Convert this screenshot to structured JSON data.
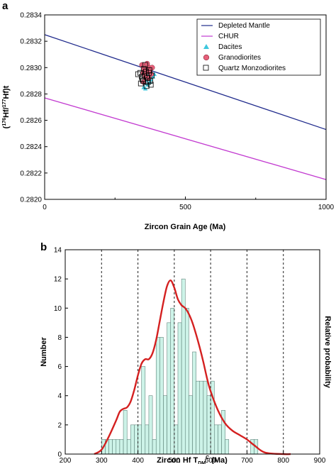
{
  "chart_data": [
    {
      "panel_label": "a",
      "type": "scatter",
      "xlabel": "Zircon Grain Age (Ma)",
      "ylabel_main": "(",
      "ylabel_sup1": "176",
      "ylabel_mid": "Hf/",
      "ylabel_sup2": "177",
      "ylabel_end": "Hf)t",
      "xlim": [
        0,
        1000
      ],
      "ylim": [
        0.282,
        0.2834
      ],
      "xticks": [
        "0",
        "500",
        "1000"
      ],
      "yticks": [
        "0.2820",
        "0.2822",
        "0.2824",
        "0.2826",
        "0.2828",
        "0.2830",
        "0.2832",
        "0.2834"
      ],
      "legend_position": "top-right",
      "legend": {
        "depleted_mantle": "Depleted Mantle",
        "chur": "CHUR",
        "dacites": "Dacites",
        "granodiorites": "Granodiorites",
        "quartz_monzodiorites": "Quartz  Monzodiorites"
      },
      "lines": [
        {
          "name": "Depleted Mantle",
          "color": "#1f2a8c",
          "x": [
            0,
            1000
          ],
          "y": [
            0.28325,
            0.28253
          ]
        },
        {
          "name": "CHUR",
          "color": "#c23ad0",
          "x": [
            0,
            1000
          ],
          "y": [
            0.28277,
            0.28215
          ]
        }
      ],
      "series": [
        {
          "name": "Dacites",
          "marker": "triangle",
          "color": "#3ec7dd",
          "x": [
            352,
            356,
            360,
            362,
            366,
            370,
            374,
            378,
            385,
            390,
            358,
            368
          ],
          "y": [
            0.28285,
            0.28288,
            0.2829,
            0.28292,
            0.28287,
            0.28294,
            0.28289,
            0.28291,
            0.28293,
            0.28295,
            0.28284,
            0.28297
          ]
        },
        {
          "name": "Granodiorites",
          "marker": "circle",
          "color": "#e7607a",
          "x": [
            346,
            350,
            354,
            358,
            362,
            366,
            370,
            374,
            378,
            382,
            352,
            364
          ],
          "y": [
            0.28302,
            0.28296,
            0.28299,
            0.28293,
            0.28297,
            0.28301,
            0.28292,
            0.28298,
            0.28295,
            0.283,
            0.28289,
            0.28303
          ]
        },
        {
          "name": "Quartz Monzodiorites",
          "marker": "square",
          "color": "#000000",
          "x": [
            332,
            340,
            345,
            350,
            355,
            360,
            365,
            370,
            375,
            380,
            342,
            352,
            362,
            372,
            357,
            367,
            348,
            377
          ],
          "y": [
            0.28295,
            0.28296,
            0.28293,
            0.2829,
            0.28294,
            0.28297,
            0.28292,
            0.28296,
            0.2829,
            0.28294,
            0.28288,
            0.28299,
            0.28286,
            0.28298,
            0.28302,
            0.28289,
            0.28291,
            0.28287
          ]
        }
      ]
    },
    {
      "panel_label": "b",
      "type": "bar",
      "xlabel_main": "Zircon Hf T",
      "xlabel_sub": "DM",
      "xlabel_sup": "C",
      "xlabel_unit": " (Ma)",
      "ylabel": "Number",
      "ylabel_right": "Relative probability",
      "xlim": [
        200,
        900
      ],
      "ylim": [
        0,
        14
      ],
      "xticks": [
        "200",
        "300",
        "400",
        "500",
        "600",
        "700",
        "800",
        "900"
      ],
      "yticks": [
        "0",
        "2",
        "4",
        "6",
        "8",
        "10",
        "12",
        "14"
      ],
      "bin_width": 10,
      "bins_start": [
        300,
        310,
        320,
        330,
        340,
        350,
        360,
        370,
        380,
        390,
        400,
        410,
        420,
        430,
        440,
        450,
        460,
        470,
        480,
        490,
        500,
        510,
        520,
        530,
        540,
        550,
        560,
        570,
        580,
        590,
        600,
        610,
        620,
        630,
        640,
        650,
        660,
        670,
        680,
        690,
        700,
        710,
        720
      ],
      "counts": [
        1,
        1,
        1,
        1,
        1,
        1,
        3,
        1,
        2,
        2,
        2,
        6,
        2,
        4,
        1,
        8,
        8,
        4,
        9,
        10,
        2,
        9,
        12,
        10,
        4,
        7,
        5,
        5,
        5,
        4,
        5,
        2,
        2,
        3,
        1,
        0,
        0,
        0,
        0,
        0,
        0,
        1,
        1
      ],
      "bar_color": "#cdf3e8",
      "curve_color": "#d42020",
      "curve": {
        "x": [
          280,
          300,
          320,
          340,
          350,
          360,
          370,
          380,
          390,
          400,
          410,
          420,
          430,
          440,
          450,
          460,
          470,
          480,
          490,
          500,
          510,
          520,
          530,
          540,
          550,
          560,
          570,
          580,
          590,
          600,
          620,
          640,
          660,
          680,
          700,
          720,
          750,
          800,
          820
        ],
        "y": [
          0,
          0.3,
          1.2,
          2.3,
          2.9,
          3.1,
          3.2,
          3.6,
          4.4,
          5.4,
          6.2,
          6.5,
          6.5,
          6.9,
          7.8,
          9.1,
          10.4,
          11.5,
          11.9,
          11.4,
          10.6,
          10.2,
          10.0,
          9.6,
          9.0,
          8.2,
          7.3,
          6.3,
          5.2,
          4.3,
          3.0,
          2.1,
          1.6,
          1.3,
          1.0,
          0.6,
          0.1,
          0,
          0
        ]
      },
      "dashed_lines_x": [
        300,
        400,
        500,
        600,
        700,
        800
      ]
    }
  ]
}
